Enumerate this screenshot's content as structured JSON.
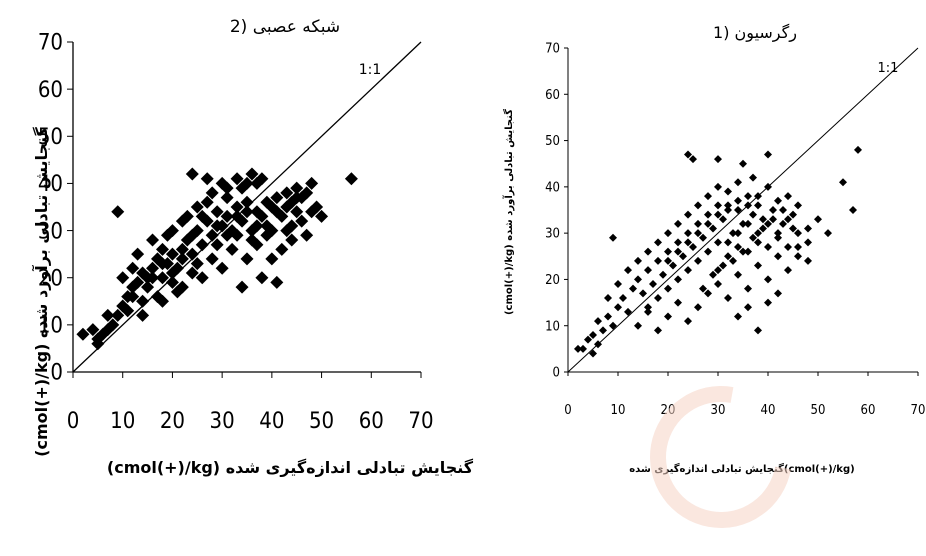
{
  "chart_data": [
    {
      "type": "scatter",
      "title": "2) شبکه عصبی",
      "reference_label": "1:1",
      "xlabel": "(cmol(+)/kg) گنجایش تبادلی اندازه‌گیری شده",
      "ylabel": "(cmol(+)/kg) گنجایش تبادلی برآورد شده",
      "xlim": [
        0,
        70
      ],
      "ylim": [
        0,
        70
      ],
      "xticks": [
        "0",
        "10",
        "20",
        "30",
        "40",
        "50",
        "60",
        "70"
      ],
      "yticks": [
        "0",
        "10",
        "20",
        "30",
        "40",
        "50",
        "60",
        "70"
      ],
      "marker": "diamond",
      "points": [
        [
          2,
          8
        ],
        [
          4,
          9
        ],
        [
          5,
          7
        ],
        [
          6,
          8
        ],
        [
          7,
          9
        ],
        [
          8,
          10
        ],
        [
          9,
          12
        ],
        [
          10,
          14
        ],
        [
          11,
          16
        ],
        [
          12,
          18
        ],
        [
          13,
          19
        ],
        [
          14,
          15
        ],
        [
          15,
          20
        ],
        [
          16,
          22
        ],
        [
          17,
          24
        ],
        [
          18,
          20
        ],
        [
          19,
          23
        ],
        [
          20,
          25
        ],
        [
          21,
          22
        ],
        [
          22,
          26
        ],
        [
          23,
          28
        ],
        [
          24,
          25
        ],
        [
          25,
          30
        ],
        [
          26,
          27
        ],
        [
          27,
          32
        ],
        [
          28,
          29
        ],
        [
          29,
          34
        ],
        [
          30,
          31
        ],
        [
          31,
          33
        ],
        [
          32,
          30
        ],
        [
          33,
          35
        ],
        [
          34,
          32
        ],
        [
          35,
          36
        ],
        [
          36,
          30
        ],
        [
          37,
          34
        ],
        [
          38,
          33
        ],
        [
          39,
          36
        ],
        [
          40,
          35
        ],
        [
          41,
          37
        ],
        [
          42,
          33
        ],
        [
          43,
          38
        ],
        [
          44,
          36
        ],
        [
          45,
          39
        ],
        [
          46,
          37
        ],
        [
          48,
          40
        ],
        [
          50,
          33
        ],
        [
          56,
          41
        ],
        [
          9,
          34
        ],
        [
          24,
          42
        ],
        [
          27,
          41
        ],
        [
          30,
          40
        ],
        [
          33,
          41
        ],
        [
          36,
          42
        ],
        [
          14,
          12
        ],
        [
          18,
          15
        ],
        [
          22,
          18
        ],
        [
          26,
          20
        ],
        [
          30,
          22
        ],
        [
          34,
          18
        ],
        [
          38,
          20
        ],
        [
          40,
          24
        ],
        [
          42,
          26
        ],
        [
          44,
          28
        ],
        [
          20,
          30
        ],
        [
          22,
          32
        ],
        [
          25,
          35
        ],
        [
          28,
          38
        ],
        [
          31,
          37
        ],
        [
          34,
          39
        ],
        [
          37,
          40
        ],
        [
          16,
          28
        ],
        [
          18,
          26
        ],
        [
          12,
          22
        ],
        [
          10,
          20
        ],
        [
          15,
          18
        ],
        [
          20,
          19
        ],
        [
          24,
          21
        ],
        [
          28,
          24
        ],
        [
          32,
          26
        ],
        [
          36,
          28
        ],
        [
          40,
          30
        ],
        [
          44,
          31
        ],
        [
          46,
          32
        ],
        [
          48,
          34
        ],
        [
          5,
          6
        ],
        [
          7,
          12
        ],
        [
          13,
          25
        ],
        [
          17,
          16
        ],
        [
          19,
          29
        ],
        [
          21,
          17
        ],
        [
          23,
          33
        ],
        [
          25,
          23
        ],
        [
          27,
          36
        ],
        [
          29,
          27
        ],
        [
          31,
          39
        ],
        [
          33,
          29
        ],
        [
          35,
          24
        ],
        [
          37,
          27
        ],
        [
          39,
          29
        ],
        [
          41,
          19
        ],
        [
          43,
          30
        ],
        [
          45,
          34
        ],
        [
          47,
          29
        ],
        [
          49,
          35
        ],
        [
          35,
          40
        ],
        [
          38,
          41
        ],
        [
          26,
          33
        ],
        [
          24,
          29
        ],
        [
          22,
          24
        ],
        [
          20,
          21
        ],
        [
          18,
          23
        ],
        [
          16,
          20
        ],
        [
          14,
          21
        ],
        [
          12,
          16
        ],
        [
          11,
          13
        ],
        [
          29,
          31
        ],
        [
          31,
          29
        ],
        [
          33,
          33
        ],
        [
          35,
          34
        ],
        [
          37,
          31
        ],
        [
          39,
          31
        ],
        [
          41,
          34
        ],
        [
          43,
          35
        ],
        [
          45,
          37
        ],
        [
          47,
          38
        ]
      ]
    },
    {
      "type": "scatter",
      "title": "1) رگرسیون",
      "reference_label": "1:1",
      "xlabel": "گنجایش تبادلی اندازه‌گیری شده(cmol(+)/kg)",
      "ylabel": "(cmol(+)/kg) گنجایش تبادلی برآورد شده",
      "xlim": [
        0,
        70
      ],
      "ylim": [
        0,
        70
      ],
      "xticks": [
        "0",
        "10",
        "20",
        "30",
        "40",
        "50",
        "60",
        "70"
      ],
      "yticks": [
        "0",
        "10",
        "20",
        "30",
        "40",
        "50",
        "60",
        "70"
      ],
      "marker": "diamond",
      "points": [
        [
          2,
          5
        ],
        [
          4,
          7
        ],
        [
          5,
          4
        ],
        [
          6,
          6
        ],
        [
          7,
          9
        ],
        [
          8,
          12
        ],
        [
          9,
          10
        ],
        [
          10,
          14
        ],
        [
          11,
          16
        ],
        [
          12,
          13
        ],
        [
          13,
          18
        ],
        [
          14,
          20
        ],
        [
          15,
          17
        ],
        [
          16,
          22
        ],
        [
          17,
          19
        ],
        [
          18,
          24
        ],
        [
          19,
          21
        ],
        [
          20,
          26
        ],
        [
          21,
          23
        ],
        [
          22,
          28
        ],
        [
          23,
          25
        ],
        [
          24,
          30
        ],
        [
          25,
          27
        ],
        [
          26,
          32
        ],
        [
          27,
          29
        ],
        [
          28,
          34
        ],
        [
          29,
          31
        ],
        [
          30,
          36
        ],
        [
          31,
          33
        ],
        [
          32,
          35
        ],
        [
          33,
          30
        ],
        [
          34,
          37
        ],
        [
          35,
          32
        ],
        [
          36,
          38
        ],
        [
          37,
          34
        ],
        [
          38,
          36
        ],
        [
          39,
          33
        ],
        [
          40,
          40
        ],
        [
          41,
          35
        ],
        [
          42,
          37
        ],
        [
          43,
          32
        ],
        [
          44,
          38
        ],
        [
          45,
          34
        ],
        [
          46,
          36
        ],
        [
          48,
          31
        ],
        [
          50,
          33
        ],
        [
          52,
          30
        ],
        [
          55,
          41
        ],
        [
          57,
          35
        ],
        [
          58,
          48
        ],
        [
          9,
          29
        ],
        [
          24,
          47
        ],
        [
          25,
          46
        ],
        [
          30,
          46
        ],
        [
          35,
          45
        ],
        [
          40,
          47
        ],
        [
          37,
          42
        ],
        [
          14,
          10
        ],
        [
          16,
          13
        ],
        [
          18,
          9
        ],
        [
          20,
          12
        ],
        [
          22,
          15
        ],
        [
          24,
          11
        ],
        [
          26,
          14
        ],
        [
          28,
          17
        ],
        [
          30,
          19
        ],
        [
          32,
          16
        ],
        [
          34,
          21
        ],
        [
          36,
          18
        ],
        [
          38,
          23
        ],
        [
          40,
          20
        ],
        [
          42,
          25
        ],
        [
          44,
          22
        ],
        [
          46,
          27
        ],
        [
          48,
          24
        ],
        [
          36,
          14
        ],
        [
          34,
          12
        ],
        [
          38,
          9
        ],
        [
          40,
          15
        ],
        [
          42,
          17
        ],
        [
          30,
          22
        ],
        [
          28,
          26
        ],
        [
          26,
          24
        ],
        [
          24,
          22
        ],
        [
          22,
          20
        ],
        [
          20,
          18
        ],
        [
          18,
          16
        ],
        [
          16,
          14
        ],
        [
          32,
          28
        ],
        [
          34,
          30
        ],
        [
          36,
          32
        ],
        [
          38,
          30
        ],
        [
          40,
          32
        ],
        [
          42,
          30
        ],
        [
          44,
          33
        ],
        [
          46,
          30
        ],
        [
          28,
          38
        ],
        [
          30,
          40
        ],
        [
          32,
          39
        ],
        [
          34,
          41
        ],
        [
          26,
          36
        ],
        [
          24,
          34
        ],
        [
          22,
          32
        ],
        [
          20,
          30
        ],
        [
          18,
          28
        ],
        [
          16,
          26
        ],
        [
          14,
          24
        ],
        [
          12,
          22
        ],
        [
          10,
          19
        ],
        [
          8,
          16
        ],
        [
          6,
          11
        ],
        [
          5,
          8
        ],
        [
          3,
          5
        ],
        [
          30,
          28
        ],
        [
          32,
          25
        ],
        [
          34,
          27
        ],
        [
          36,
          26
        ],
        [
          38,
          28
        ],
        [
          40,
          27
        ],
        [
          42,
          29
        ],
        [
          44,
          27
        ],
        [
          46,
          25
        ],
        [
          48,
          28
        ],
        [
          20,
          24
        ],
        [
          22,
          26
        ],
        [
          24,
          28
        ],
        [
          26,
          30
        ],
        [
          28,
          32
        ],
        [
          30,
          34
        ],
        [
          32,
          36
        ],
        [
          34,
          35
        ],
        [
          36,
          36
        ],
        [
          38,
          38
        ],
        [
          27,
          18
        ],
        [
          29,
          21
        ],
        [
          31,
          23
        ],
        [
          33,
          24
        ],
        [
          35,
          26
        ],
        [
          37,
          29
        ],
        [
          39,
          31
        ],
        [
          41,
          33
        ],
        [
          43,
          35
        ],
        [
          45,
          31
        ]
      ]
    }
  ]
}
